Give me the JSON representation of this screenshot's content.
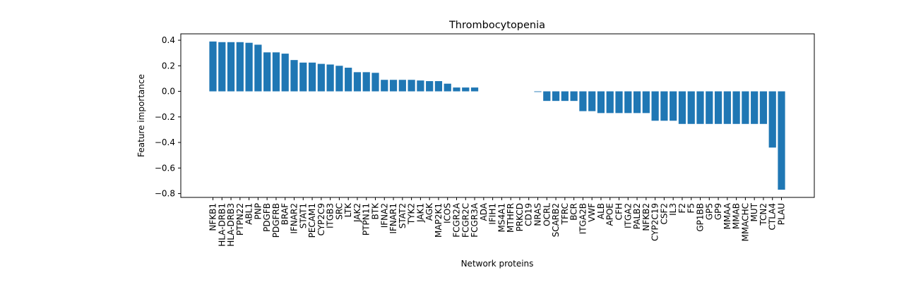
{
  "chart_data": {
    "type": "bar",
    "title": "Thrombocytopenia",
    "xlabel": "Network proteins",
    "ylabel": "Feature importance",
    "ylim": [
      -0.83,
      0.45
    ],
    "yticks": [
      -0.8,
      -0.6,
      -0.4,
      -0.2,
      0.0,
      0.2,
      0.4
    ],
    "ytick_labels": [
      "−0.8",
      "−0.6",
      "−0.4",
      "−0.2",
      "0.0",
      "0.2",
      "0.4"
    ],
    "grid": false,
    "bar_color": "#1f77b4",
    "categories": [
      "NFKB1",
      "HLA-DRB1",
      "HLA-DRB3",
      "PTPN22",
      "ABL1",
      "PNP",
      "PDGFB",
      "PDGFRB",
      "BRAF",
      "IFNAR2",
      "STAT1",
      "PECAM1",
      "CYP2C9",
      "ITGB3",
      "SRC",
      "LTK",
      "JAK2",
      "PTPN11",
      "BTK",
      "IFNA2",
      "IFNAR1",
      "STAT2",
      "TYK2",
      "JAK1",
      "AGK",
      "MAP2K1",
      "ICOS",
      "FCGR2A",
      "FCGR2C",
      "FCGR3A",
      "ADA",
      "IFIH1",
      "MS4A1",
      "MTHFR",
      "PRKCD",
      "CD19",
      "NRAS",
      "OCRL",
      "SCARB2",
      "TFRC",
      "BCR",
      "ITGA2B",
      "VWF",
      "ALB",
      "APOE",
      "CFH",
      "ITGA2",
      "PALB2",
      "NFKB2",
      "CYP2C19",
      "CSF2",
      "IL3",
      "F2",
      "F5",
      "GP1BB",
      "GP5",
      "GP9",
      "MMAA",
      "MMAB",
      "MMACHC",
      "MUT",
      "TCN2",
      "CTLA4",
      "PLAU"
    ],
    "values": [
      0.39,
      0.385,
      0.385,
      0.385,
      0.38,
      0.365,
      0.305,
      0.305,
      0.295,
      0.245,
      0.225,
      0.225,
      0.215,
      0.21,
      0.2,
      0.185,
      0.15,
      0.15,
      0.145,
      0.09,
      0.09,
      0.09,
      0.09,
      0.085,
      0.08,
      0.08,
      0.06,
      0.03,
      0.03,
      0.03,
      0.0,
      0.0,
      0.0,
      0.0,
      0.0,
      0.0,
      -0.005,
      -0.075,
      -0.075,
      -0.075,
      -0.075,
      -0.155,
      -0.155,
      -0.17,
      -0.17,
      -0.17,
      -0.17,
      -0.17,
      -0.17,
      -0.23,
      -0.23,
      -0.23,
      -0.255,
      -0.255,
      -0.255,
      -0.255,
      -0.255,
      -0.255,
      -0.255,
      -0.255,
      -0.255,
      -0.255,
      -0.44,
      -0.77
    ]
  }
}
